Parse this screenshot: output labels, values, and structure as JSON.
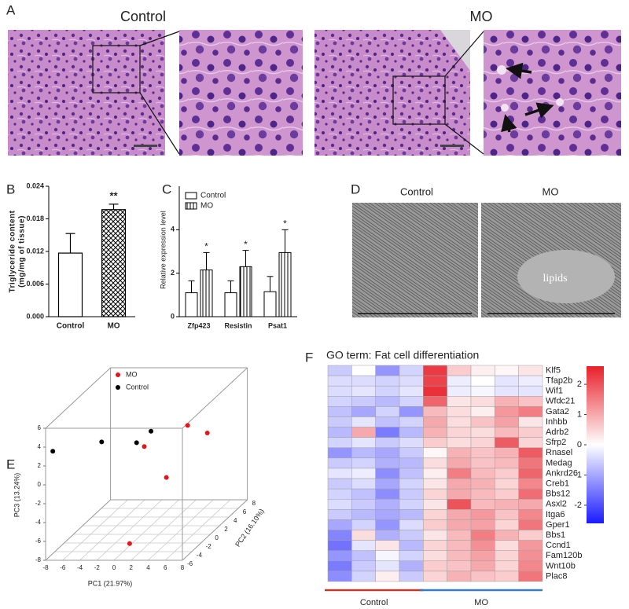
{
  "panel_labels": [
    "A",
    "B",
    "C",
    "D",
    "E",
    "F"
  ],
  "histology": {
    "labels": [
      "Control",
      "MO"
    ]
  },
  "tem": {
    "labels": [
      "Control",
      "MO"
    ],
    "annotation": "lipids"
  },
  "chart_data": [
    {
      "type": "bar",
      "ylabel": [
        "Triglyceride content",
        "(mg/mg of tissue)"
      ],
      "categories": [
        "Control",
        "MO"
      ],
      "values": [
        0.0117,
        0.0197
      ],
      "errors": [
        0.0036,
        0.001
      ],
      "patterns": [
        "none",
        "crosshatch"
      ],
      "annotations": [
        null,
        "**"
      ],
      "ylim": [
        0,
        0.024
      ],
      "yticks": [
        {
          "value": 0,
          "label": "0.000"
        },
        {
          "value": 0.006,
          "label": "0.006"
        },
        {
          "value": 0.012,
          "label": "0.012"
        },
        {
          "value": 0.018,
          "label": "0.018"
        },
        {
          "value": 0.024,
          "label": "0.024"
        }
      ]
    },
    {
      "type": "grouped_bar",
      "ylabel": "Relative expression level",
      "categories": [
        "Zfp423",
        "Resistin",
        "Psat1"
      ],
      "series": [
        {
          "name": "Control",
          "pattern": "none",
          "values": [
            1.1,
            1.1,
            1.15
          ],
          "errors": [
            0.55,
            0.55,
            0.7
          ]
        },
        {
          "name": "MO",
          "pattern": "vertical-lines",
          "values": [
            2.15,
            2.3,
            2.95
          ],
          "errors": [
            0.8,
            0.75,
            1.05
          ]
        }
      ],
      "annotations": [
        "*",
        "*",
        "*"
      ],
      "legend": "upper-left",
      "ylim": [
        0,
        6
      ],
      "yticks": [
        0,
        2,
        4
      ]
    },
    {
      "type": "scatter3d",
      "xlabel": "PC1 (21.97%)",
      "ylabel": "PC2 (16.10%)",
      "zlabel": "PC3 (13.24%)",
      "xlim": [
        -8,
        8
      ],
      "ylim": [
        -6,
        8
      ],
      "zlim": [
        -8,
        6
      ],
      "xticks": [
        -8,
        -6,
        -4,
        -2,
        0,
        2,
        4,
        6,
        8
      ],
      "yticks": [
        -6,
        -4,
        -2,
        0,
        2,
        4,
        6,
        8
      ],
      "zticks": [
        -8,
        -6,
        -4,
        -2,
        0,
        2,
        4,
        6
      ],
      "legend": "upper-left",
      "grid": true,
      "series": [
        {
          "name": "MO",
          "color": "#e8141c",
          "x": [
            -0.8,
            2.1,
            4.4,
            0.7,
            0.2
          ],
          "y": [
            2,
            6,
            6,
            4,
            -3
          ],
          "z": [
            0.4,
            0.8,
            0,
            -3.8,
            -7.6
          ]
        },
        {
          "name": "Control",
          "color": "#000000",
          "x": [
            -7.7,
            -4.7,
            -1.7,
            -1.1
          ],
          "y": [
            -5,
            0,
            2,
            4
          ],
          "z": [
            3.1,
            1.8,
            0.8,
            1.1
          ]
        }
      ]
    },
    {
      "type": "heatmap",
      "title": "GO term: Fat cell differentiation",
      "rows": [
        "Klf5",
        "Tfap2b",
        "Wif1",
        "Wfdc21",
        "Gata2",
        "Inhbb",
        "Adrb2",
        "Sfrp2",
        "Rnasel",
        "Medag",
        "Ankrd26",
        "Creb1",
        "Bbs12",
        "Asxl2",
        "Itga6",
        "Gper1",
        "Bbs1",
        "Ccnd1",
        "Fam120b",
        "Wnt10b",
        "Plac8"
      ],
      "values": [
        [
          -0.6,
          0,
          -1.2,
          -0.5,
          2.3,
          0.6,
          0.2,
          0.1,
          0.3
        ],
        [
          -0.4,
          -0.4,
          -0.5,
          -0.4,
          2.2,
          -0.2,
          0,
          -0.3,
          -0.2
        ],
        [
          -0.4,
          -0.3,
          -0.5,
          -0.3,
          2.4,
          -0.2,
          -0.1,
          -0.3,
          -0.3
        ],
        [
          -0.5,
          -0.6,
          -0.8,
          -0.5,
          1.8,
          0.3,
          0.4,
          0.9,
          0.7
        ],
        [
          -0.7,
          -1.0,
          -0.5,
          -1.2,
          0.8,
          0.4,
          0.2,
          1.2,
          1.5
        ],
        [
          -0.6,
          -0.3,
          -0.7,
          -0.5,
          1.0,
          0.4,
          0.7,
          1.1,
          0.3
        ],
        [
          -0.8,
          1.0,
          -1.5,
          -0.8,
          0.9,
          0.5,
          0.4,
          0.8,
          0.6
        ],
        [
          -0.5,
          -0.3,
          -0.6,
          -0.4,
          0.6,
          0.4,
          0.5,
          1.9,
          0.5
        ],
        [
          -1.2,
          -0.8,
          -1.0,
          -0.6,
          0.1,
          0.9,
          0.7,
          0.9,
          1.9
        ],
        [
          -0.6,
          -0.5,
          -0.9,
          -0.8,
          0.4,
          1.0,
          0.7,
          0.8,
          1.6
        ],
        [
          -0.3,
          -0.2,
          -1.3,
          -0.7,
          0.2,
          1.5,
          0.8,
          0.6,
          1.8
        ],
        [
          -0.6,
          -0.4,
          -1.0,
          -0.5,
          0.3,
          1.0,
          0.9,
          0.5,
          1.4
        ],
        [
          -0.5,
          -0.7,
          -1.3,
          -0.6,
          0.5,
          1.0,
          0.8,
          0.6,
          1.7
        ],
        [
          -0.4,
          -0.6,
          -0.9,
          -0.5,
          0.3,
          2.0,
          0.8,
          0.9,
          1.0
        ],
        [
          -0.6,
          -0.8,
          -1.0,
          -0.8,
          0.5,
          1.0,
          1.2,
          0.7,
          1.4
        ],
        [
          -1.0,
          -0.5,
          -1.2,
          -0.4,
          0.6,
          1.0,
          1.1,
          0.5,
          1.6
        ],
        [
          -1.4,
          0.4,
          -0.9,
          -0.6,
          0.3,
          0.8,
          1.5,
          0.9,
          0.6
        ],
        [
          -1.6,
          -0.3,
          0.3,
          -0.8,
          0.5,
          0.8,
          1.3,
          0.4,
          1.2
        ],
        [
          -1.2,
          -0.7,
          -0.1,
          -0.5,
          0.4,
          0.8,
          1.1,
          0.5,
          1.3
        ],
        [
          -1.5,
          -0.6,
          -0.3,
          -0.9,
          0.6,
          0.7,
          1.0,
          0.5,
          1.4
        ],
        [
          -1.3,
          -0.5,
          0.2,
          -0.6,
          0.5,
          0.9,
          0.7,
          0.6,
          1.6
        ]
      ],
      "groups": [
        "Control",
        "MO"
      ],
      "group_colors": [
        "#c0392b",
        "#3a7bbf"
      ],
      "clim": [
        -2.6,
        2.6
      ],
      "cticks": [
        -2,
        -1,
        0,
        1,
        2
      ],
      "colormap": {
        "low": "#1a1aff",
        "mid": "#ffffff",
        "high": "#e8202a"
      }
    }
  ]
}
